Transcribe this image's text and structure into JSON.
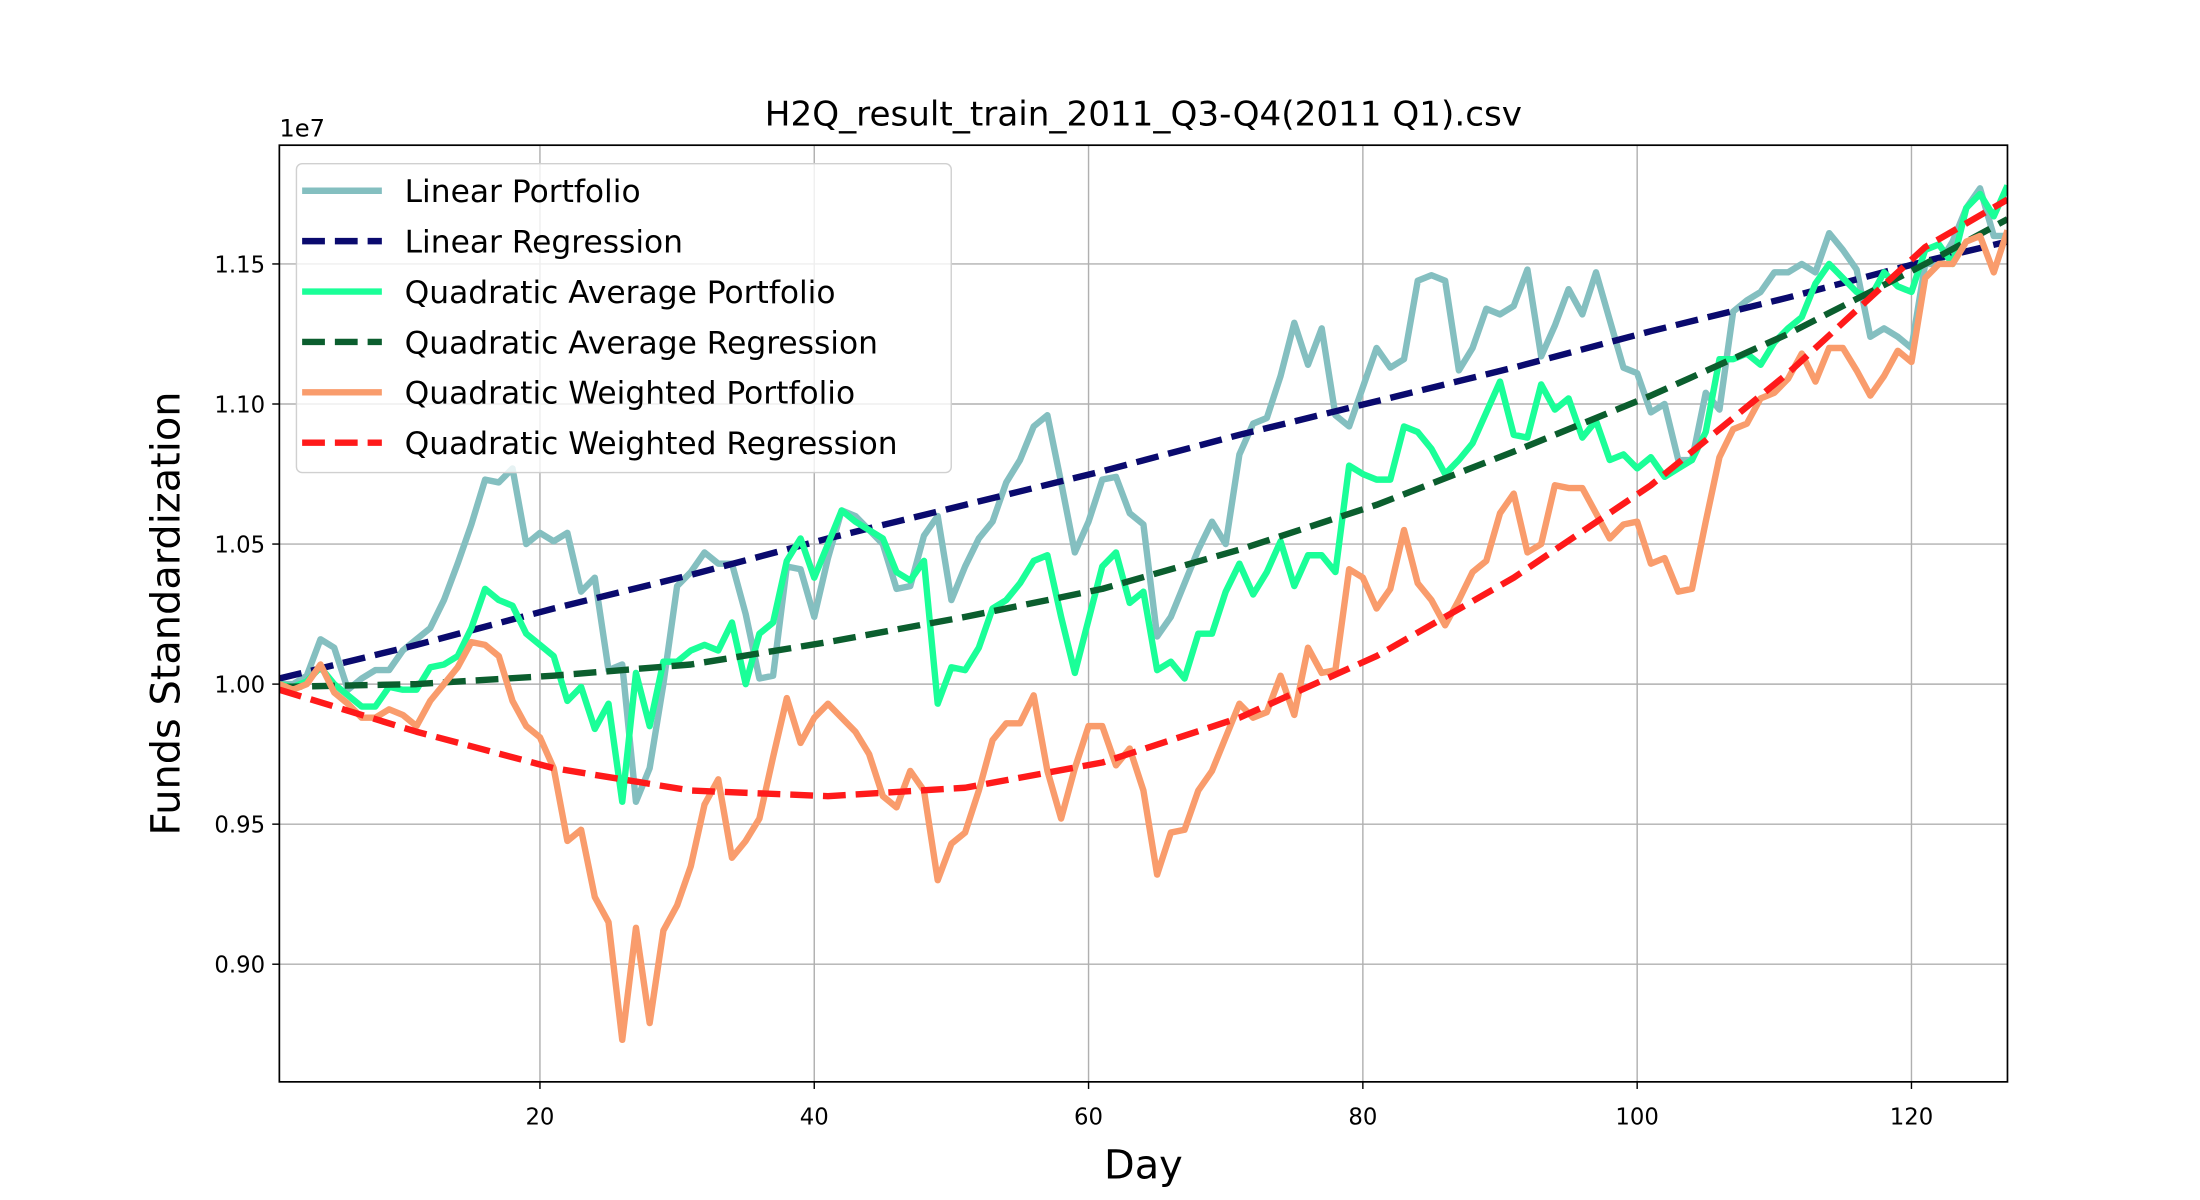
{
  "chart_data": {
    "type": "line",
    "title": "H2Q_result_train_2011_Q3-Q4(2011 Q1).csv",
    "x_label": "Day",
    "y_label": "Funds Standardization",
    "y_offset_text": "1e7",
    "xlim": [
      1,
      127
    ],
    "ylim": [
      0.858,
      1.1924
    ],
    "xticks": [
      20,
      40,
      60,
      80,
      100,
      120
    ],
    "yticks": [
      {
        "value": 0.9,
        "label": "0.90"
      },
      {
        "value": 0.95,
        "label": "0.95"
      },
      {
        "value": 1.0,
        "label": "1.00"
      },
      {
        "value": 1.05,
        "label": "1.05"
      },
      {
        "value": 1.1,
        "label": "1.10"
      },
      {
        "value": 1.15,
        "label": "1.15"
      }
    ],
    "grid": true,
    "legend": "upper left",
    "x": [
      1,
      2,
      3,
      4,
      5,
      6,
      7,
      8,
      9,
      10,
      11,
      12,
      13,
      14,
      15,
      16,
      17,
      18,
      19,
      20,
      21,
      22,
      23,
      24,
      25,
      26,
      27,
      28,
      29,
      30,
      31,
      32,
      33,
      34,
      35,
      36,
      37,
      38,
      39,
      40,
      41,
      42,
      43,
      44,
      45,
      46,
      47,
      48,
      49,
      50,
      51,
      52,
      53,
      54,
      55,
      56,
      57,
      58,
      59,
      60,
      61,
      62,
      63,
      64,
      65,
      66,
      67,
      68,
      69,
      70,
      71,
      72,
      73,
      74,
      75,
      76,
      77,
      78,
      79,
      80,
      81,
      82,
      83,
      84,
      85,
      86,
      87,
      88,
      89,
      90,
      91,
      92,
      93,
      94,
      95,
      96,
      97,
      98,
      99,
      100,
      101,
      102,
      103,
      104,
      105,
      106,
      107,
      108,
      109,
      110,
      111,
      112,
      113,
      114,
      115,
      116,
      117,
      118,
      119,
      120,
      121,
      122,
      123,
      124,
      125,
      126,
      127
    ],
    "series": [
      {
        "name": "Linear Portfolio",
        "color": "#84bfc0",
        "linestyle": "solid",
        "values": [
          1.0,
          1.0,
          1.003,
          1.016,
          1.013,
          0.998,
          1.002,
          1.005,
          1.005,
          1.012,
          1.016,
          1.02,
          1.03,
          1.043,
          1.057,
          1.073,
          1.072,
          1.077,
          1.05,
          1.054,
          1.051,
          1.054,
          1.033,
          1.038,
          1.005,
          1.007,
          0.958,
          0.97,
          1.0,
          1.035,
          1.04,
          1.047,
          1.043,
          1.043,
          1.025,
          1.002,
          1.003,
          1.042,
          1.041,
          1.024,
          1.045,
          1.062,
          1.06,
          1.055,
          1.05,
          1.034,
          1.035,
          1.053,
          1.06,
          1.03,
          1.042,
          1.052,
          1.058,
          1.072,
          1.08,
          1.092,
          1.096,
          1.072,
          1.047,
          1.058,
          1.073,
          1.074,
          1.061,
          1.057,
          1.017,
          1.024,
          1.036,
          1.048,
          1.058,
          1.05,
          1.082,
          1.093,
          1.095,
          1.11,
          1.129,
          1.114,
          1.127,
          1.096,
          1.092,
          1.106,
          1.12,
          1.113,
          1.116,
          1.144,
          1.146,
          1.144,
          1.112,
          1.12,
          1.134,
          1.132,
          1.135,
          1.148,
          1.117,
          1.128,
          1.141,
          1.132,
          1.147,
          1.13,
          1.113,
          1.111,
          1.097,
          1.1,
          1.08,
          1.08,
          1.104,
          1.098,
          1.133,
          1.137,
          1.14,
          1.147,
          1.147,
          1.15,
          1.147,
          1.161,
          1.155,
          1.148,
          1.124,
          1.127,
          1.124,
          1.12,
          1.15,
          1.15,
          1.158,
          1.17,
          1.177,
          1.16,
          1.16
        ]
      },
      {
        "name": "Linear Regression",
        "color": "#0a0a6e",
        "linestyle": "dashed",
        "x": [
          1,
          11,
          21,
          31,
          41,
          51,
          61,
          71,
          81,
          91,
          101,
          111,
          121,
          127
        ],
        "values": [
          1.002,
          1.014,
          1.027,
          1.039,
          1.052,
          1.064,
          1.076,
          1.089,
          1.101,
          1.113,
          1.126,
          1.138,
          1.151,
          1.158
        ]
      },
      {
        "name": "Quadratic Average Portfolio",
        "color": "#1aff98",
        "linestyle": "solid",
        "values": [
          1.0,
          0.999,
          1.001,
          1.006,
          1.0,
          0.996,
          0.992,
          0.992,
          0.999,
          0.998,
          0.998,
          1.006,
          1.007,
          1.01,
          1.02,
          1.034,
          1.03,
          1.028,
          1.018,
          1.014,
          1.01,
          0.994,
          0.999,
          0.984,
          0.993,
          0.958,
          1.004,
          0.985,
          1.008,
          1.008,
          1.012,
          1.014,
          1.012,
          1.022,
          1.0,
          1.018,
          1.022,
          1.044,
          1.052,
          1.038,
          1.05,
          1.062,
          1.058,
          1.055,
          1.052,
          1.04,
          1.037,
          1.044,
          0.993,
          1.006,
          1.005,
          1.013,
          1.027,
          1.03,
          1.036,
          1.044,
          1.046,
          1.024,
          1.004,
          1.023,
          1.042,
          1.047,
          1.029,
          1.033,
          1.005,
          1.008,
          1.002,
          1.018,
          1.018,
          1.033,
          1.043,
          1.032,
          1.04,
          1.051,
          1.035,
          1.046,
          1.046,
          1.04,
          1.078,
          1.075,
          1.073,
          1.073,
          1.092,
          1.09,
          1.084,
          1.075,
          1.08,
          1.086,
          1.097,
          1.108,
          1.089,
          1.088,
          1.107,
          1.098,
          1.102,
          1.088,
          1.094,
          1.08,
          1.082,
          1.077,
          1.081,
          1.074,
          1.077,
          1.08,
          1.09,
          1.116,
          1.116,
          1.118,
          1.114,
          1.122,
          1.127,
          1.131,
          1.143,
          1.15,
          1.145,
          1.14,
          1.138,
          1.147,
          1.142,
          1.14,
          1.155,
          1.157,
          1.15,
          1.17,
          1.175,
          1.167,
          1.178
        ]
      },
      {
        "name": "Quadratic Average Regression",
        "color": "#0b5e2e",
        "linestyle": "dashed",
        "x": [
          1,
          11,
          21,
          31,
          41,
          51,
          61,
          71,
          81,
          91,
          101,
          111,
          121,
          127
        ],
        "values": [
          0.999,
          1.0,
          1.003,
          1.007,
          1.015,
          1.024,
          1.034,
          1.048,
          1.064,
          1.083,
          1.103,
          1.125,
          1.15,
          1.166
        ]
      },
      {
        "name": "Quadratic Weighted Portfolio",
        "color": "#f99c6c",
        "linestyle": "solid",
        "values": [
          1.0,
          0.998,
          1.0,
          1.007,
          0.997,
          0.993,
          0.988,
          0.988,
          0.991,
          0.989,
          0.985,
          0.994,
          1.0,
          1.006,
          1.015,
          1.014,
          1.01,
          0.994,
          0.985,
          0.981,
          0.97,
          0.944,
          0.948,
          0.924,
          0.915,
          0.873,
          0.913,
          0.879,
          0.912,
          0.921,
          0.935,
          0.957,
          0.966,
          0.938,
          0.944,
          0.952,
          0.974,
          0.995,
          0.979,
          0.988,
          0.993,
          0.988,
          0.983,
          0.975,
          0.96,
          0.956,
          0.969,
          0.962,
          0.93,
          0.943,
          0.947,
          0.962,
          0.98,
          0.986,
          0.986,
          0.996,
          0.969,
          0.952,
          0.97,
          0.985,
          0.985,
          0.971,
          0.977,
          0.962,
          0.932,
          0.947,
          0.948,
          0.962,
          0.969,
          0.981,
          0.993,
          0.988,
          0.99,
          1.003,
          0.989,
          1.013,
          1.004,
          1.005,
          1.041,
          1.038,
          1.027,
          1.034,
          1.055,
          1.036,
          1.03,
          1.021,
          1.03,
          1.04,
          1.044,
          1.061,
          1.068,
          1.047,
          1.05,
          1.071,
          1.07,
          1.07,
          1.061,
          1.052,
          1.057,
          1.058,
          1.043,
          1.045,
          1.033,
          1.034,
          1.058,
          1.081,
          1.091,
          1.093,
          1.102,
          1.104,
          1.109,
          1.118,
          1.108,
          1.12,
          1.12,
          1.112,
          1.103,
          1.11,
          1.119,
          1.115,
          1.145,
          1.15,
          1.15,
          1.158,
          1.16,
          1.147,
          1.162
        ]
      },
      {
        "name": "Quadratic Weighted Regression",
        "color": "#ff1a1a",
        "linestyle": "dashed",
        "x": [
          1,
          11,
          21,
          31,
          41,
          51,
          61,
          71,
          81,
          91,
          101,
          111,
          121,
          127
        ],
        "values": [
          0.998,
          0.983,
          0.97,
          0.962,
          0.96,
          0.963,
          0.972,
          0.988,
          1.01,
          1.038,
          1.071,
          1.111,
          1.156,
          1.173
        ]
      }
    ]
  }
}
